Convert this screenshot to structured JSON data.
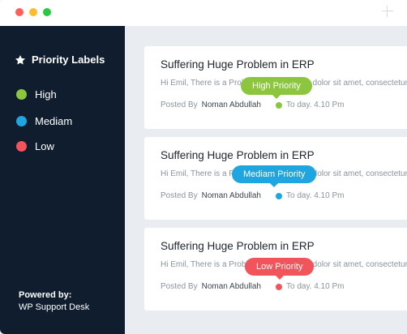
{
  "colors": {
    "high": "#8cc63f",
    "medium": "#1fa5e0",
    "low": "#f2545b"
  },
  "sidebar": {
    "title": "Priority Labels",
    "items": [
      {
        "label": "High",
        "color": "#8cc63f"
      },
      {
        "label": "Mediam",
        "color": "#1fa5e0"
      },
      {
        "label": "Low",
        "color": "#f2545b"
      }
    ],
    "powered_by": "Powered by:",
    "brand": "WP Support Desk"
  },
  "tickets": [
    {
      "title": "Suffering Huge Problem in ERP",
      "excerpt": "Hi Emil, There is a Problem, Lorem ipsum dolor sit amet, consectetur",
      "posted_by_label": "Posted By",
      "author": "Noman Abdullah",
      "time": "To day. 4.10 Pm",
      "badge": "High Priority",
      "color": "#8cc63f"
    },
    {
      "title": "Suffering Huge Problem in ERP",
      "excerpt": "Hi Emil, There is a Problem, Lorem ipsum dolor sit amet, consectetur",
      "posted_by_label": "Posted By",
      "author": "Noman Abdullah",
      "time": "To day. 4.10 Pm",
      "badge": "Mediam Priority",
      "color": "#1fa5e0"
    },
    {
      "title": "Suffering Huge Problem in ERP",
      "excerpt": "Hi Emil, There is a Problem, Lorem ipsum dolor sit amet, consectetur",
      "posted_by_label": "Posted By",
      "author": "Noman Abdullah",
      "time": "To day. 4.10 Pm",
      "badge": "Low Priority",
      "color": "#f2545b"
    }
  ]
}
